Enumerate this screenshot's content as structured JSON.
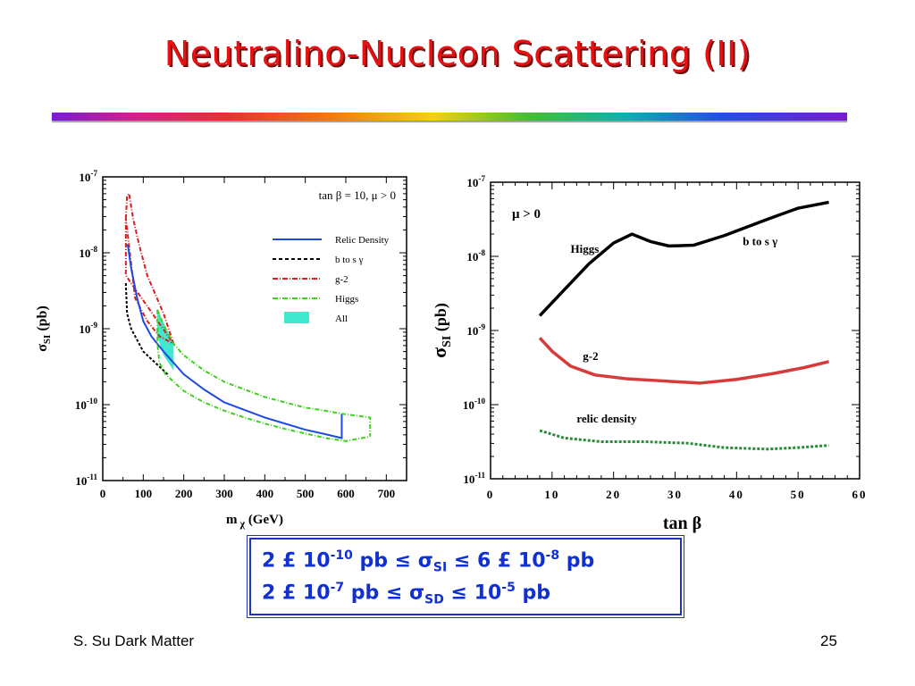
{
  "slide": {
    "title": "Neutralino-Nucleon Scattering (II)",
    "footer_left": "S. Su Dark Matter",
    "footer_right": "25"
  },
  "formula": {
    "line1": {
      "a": "2 £ 10",
      "a_exp": "-10",
      "b": " pb ≤ σ",
      "b_sub": "SI",
      "c": " ≤ 6 £ 10",
      "c_exp": "-8",
      "d": " pb"
    },
    "line2": {
      "a": "2 £ 10",
      "a_exp": "-7",
      "b": " pb ≤ σ",
      "b_sub": "SD",
      "c": " ≤  10",
      "c_exp": "-5",
      "d": " pb"
    }
  },
  "chart_data": [
    {
      "type": "line",
      "annotation": "tan β = 10, μ > 0",
      "xlabel": "m",
      "xlabel_sub": "χ",
      "xlabel_unit": "(GeV)",
      "ylabel": "σ",
      "ylabel_sub": "SI",
      "ylabel_unit": "(pb)",
      "xlim": [
        0,
        750
      ],
      "ylim_log10": [
        -11,
        -7
      ],
      "x_ticks": [
        0,
        100,
        200,
        300,
        400,
        500,
        600,
        700
      ],
      "y_ticks": [
        {
          "base": "10",
          "exp": "-11",
          "log": -11
        },
        {
          "base": "10",
          "exp": "-10",
          "log": -10
        },
        {
          "base": "10",
          "exp": "-9",
          "log": -9
        },
        {
          "base": "10",
          "exp": "-8",
          "log": -8
        },
        {
          "base": "10",
          "exp": "-7",
          "log": -7
        }
      ],
      "legend_position": "top-right",
      "legend": [
        {
          "label": "Relic Density",
          "color": "#1f4ae0",
          "dash": ""
        },
        {
          "label": "b to s γ",
          "color": "#000000",
          "dash": "4,3"
        },
        {
          "label": "g-2",
          "color": "#d62020",
          "dash": "6,2,1,2"
        },
        {
          "label": "Higgs",
          "color": "#40d020",
          "dash": "6,2,1,2"
        },
        {
          "label": "All",
          "color": "#40e8d0",
          "fill": true
        }
      ],
      "series": [
        {
          "name": "g-2",
          "color": "#d62020",
          "dash": "5,2,1,2",
          "points": [
            [
              57,
              -7.55
            ],
            [
              60,
              -7.25
            ],
            [
              65,
              -7.22
            ],
            [
              75,
              -7.55
            ],
            [
              90,
              -7.9
            ],
            [
              110,
              -8.3
            ],
            [
              130,
              -8.55
            ],
            [
              150,
              -8.8
            ],
            [
              175,
              -9.2
            ],
            [
              57,
              -8.3
            ],
            [
              57,
              -7.55
            ],
            [
              80,
              -8.6
            ],
            [
              110,
              -8.9
            ],
            [
              140,
              -9.1
            ],
            [
              175,
              -9.2
            ]
          ]
        },
        {
          "name": "Relic Density",
          "color": "#1f4ae0",
          "dash": "",
          "points": [
            [
              57,
              -7.9
            ],
            [
              62,
              -7.9
            ],
            [
              70,
              -8.2
            ],
            [
              85,
              -8.6
            ],
            [
              100,
              -8.9
            ],
            [
              120,
              -9.1
            ],
            [
              150,
              -9.3
            ],
            [
              200,
              -9.6
            ],
            [
              250,
              -9.8
            ],
            [
              300,
              -9.97
            ],
            [
              350,
              -10.07
            ],
            [
              400,
              -10.17
            ],
            [
              450,
              -10.25
            ],
            [
              500,
              -10.33
            ],
            [
              550,
              -10.39
            ],
            [
              590,
              -10.44
            ],
            [
              590,
              -10.12
            ]
          ]
        },
        {
          "name": "b to s γ",
          "color": "#000000",
          "dash": "3,2",
          "points": [
            [
              57,
              -8.4
            ],
            [
              60,
              -8.8
            ],
            [
              70,
              -9.0
            ],
            [
              85,
              -9.15
            ],
            [
              100,
              -9.3
            ],
            [
              120,
              -9.4
            ],
            [
              140,
              -9.5
            ],
            [
              160,
              -9.6
            ]
          ]
        },
        {
          "name": "Higgs upper",
          "color": "#40d020",
          "dash": "5,2,1,2",
          "points": [
            [
              135,
              -8.75
            ],
            [
              150,
              -8.95
            ],
            [
              175,
              -9.2
            ],
            [
              200,
              -9.35
            ],
            [
              250,
              -9.55
            ],
            [
              300,
              -9.7
            ],
            [
              350,
              -9.8
            ],
            [
              400,
              -9.9
            ],
            [
              450,
              -9.97
            ],
            [
              500,
              -10.04
            ],
            [
              550,
              -10.08
            ],
            [
              590,
              -10.12
            ],
            [
              660,
              -10.17
            ],
            [
              660,
              -10.42
            ]
          ]
        },
        {
          "name": "Higgs lower",
          "color": "#40d020",
          "dash": "5,2,1,2",
          "points": [
            [
              135,
              -8.75
            ],
            [
              135,
              -9.2
            ],
            [
              140,
              -9.45
            ],
            [
              155,
              -9.6
            ],
            [
              175,
              -9.7
            ],
            [
              200,
              -9.82
            ],
            [
              250,
              -9.97
            ],
            [
              300,
              -10.08
            ],
            [
              350,
              -10.17
            ],
            [
              400,
              -10.25
            ],
            [
              450,
              -10.32
            ],
            [
              500,
              -10.38
            ],
            [
              550,
              -10.44
            ],
            [
              600,
              -10.48
            ],
            [
              660,
              -10.42
            ]
          ]
        }
      ],
      "allowed_region": [
        [
          135,
          -8.75
        ],
        [
          175,
          -9.2
        ],
        [
          175,
          -9.55
        ],
        [
          150,
          -9.35
        ],
        [
          135,
          -9.1
        ]
      ]
    },
    {
      "type": "line",
      "annotation": "μ > 0",
      "xlabel": "tan β",
      "ylabel": "σ",
      "ylabel_sub": "SI",
      "ylabel_unit": "(pb)",
      "xlim": [
        0,
        60
      ],
      "ylim_log10": [
        -11,
        -7
      ],
      "x_ticks": [
        0,
        10,
        20,
        30,
        40,
        50,
        60
      ],
      "y_ticks": [
        {
          "base": "10",
          "exp": "-11",
          "log": -11
        },
        {
          "base": "10",
          "exp": "-10",
          "log": -10
        },
        {
          "base": "10",
          "exp": "-9",
          "log": -9
        },
        {
          "base": "10",
          "exp": "-8",
          "log": -8
        },
        {
          "base": "10",
          "exp": "-7",
          "log": -7
        }
      ],
      "series": [
        {
          "name": "Higgs",
          "label": "Higgs",
          "color": "#000000",
          "dash": "",
          "points": [
            [
              8,
              -8.8
            ],
            [
              12,
              -8.45
            ],
            [
              16,
              -8.1
            ],
            [
              20,
              -7.82
            ],
            [
              23,
              -7.7
            ],
            [
              26,
              -7.8
            ],
            [
              29,
              -7.86
            ],
            [
              33,
              -7.85
            ],
            [
              38,
              -7.72
            ],
            [
              45,
              -7.5
            ],
            [
              50,
              -7.35
            ],
            [
              55,
              -7.27
            ]
          ]
        },
        {
          "name": "b to s γ",
          "label": "b to s γ",
          "color": "#000000",
          "dash": "",
          "points": []
        },
        {
          "name": "g-2",
          "label": "g-2",
          "color": "#d63a3a",
          "dash": "",
          "points": [
            [
              8,
              -9.1
            ],
            [
              10,
              -9.28
            ],
            [
              13,
              -9.48
            ],
            [
              17,
              -9.6
            ],
            [
              22,
              -9.65
            ],
            [
              28,
              -9.68
            ],
            [
              34,
              -9.71
            ],
            [
              40,
              -9.66
            ],
            [
              46,
              -9.58
            ],
            [
              51,
              -9.5
            ],
            [
              55,
              -9.42
            ]
          ]
        },
        {
          "name": "relic density",
          "label": "relic density",
          "color": "#2a8a3a",
          "dash": "3,2",
          "points": [
            [
              8,
              -10.35
            ],
            [
              12,
              -10.45
            ],
            [
              18,
              -10.5
            ],
            [
              25,
              -10.5
            ],
            [
              32,
              -10.52
            ],
            [
              38,
              -10.58
            ],
            [
              45,
              -10.6
            ],
            [
              50,
              -10.58
            ],
            [
              55,
              -10.55
            ]
          ]
        }
      ]
    }
  ]
}
